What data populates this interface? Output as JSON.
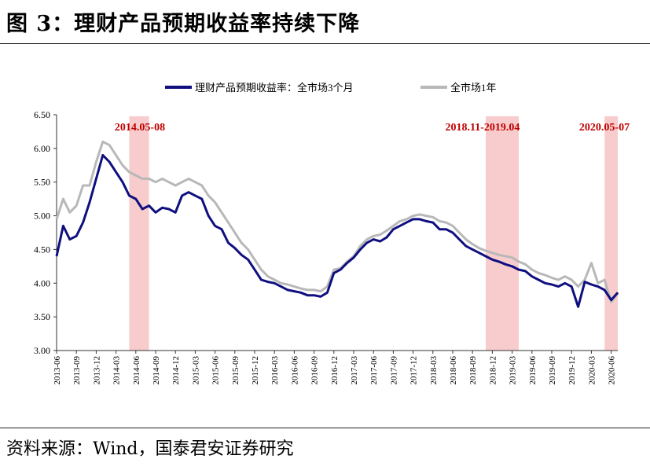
{
  "figure_title": "图 3：理财产品预期收益率持续下降",
  "source": "资料来源：Wind，国泰君安证券研究",
  "chart_data": {
    "type": "line",
    "ylim": [
      3.0,
      6.5
    ],
    "yticks": [
      "3.00",
      "3.50",
      "4.00",
      "4.50",
      "5.00",
      "5.50",
      "6.00",
      "6.50"
    ],
    "x_tick_labels": [
      "2013-06",
      "2013-09",
      "2013-12",
      "2014-03",
      "2014-06",
      "2014-09",
      "2014-12",
      "2015-03",
      "2015-06",
      "2015-09",
      "2015-12",
      "2016-03",
      "2016-06",
      "2016-09",
      "2016-12",
      "2017-03",
      "2017-06",
      "2017-09",
      "2017-12",
      "2018-03",
      "2018-06",
      "2018-09",
      "2018-12",
      "2019-03",
      "2019-06",
      "2019-09",
      "2019-12",
      "2020-03",
      "2020-06"
    ],
    "legend_position": "top",
    "shaded_periods": [
      {
        "label": "2014.05-08",
        "start": "2014-05",
        "end": "2014-08"
      },
      {
        "label": "2018.11-2019.04",
        "start": "2018-11",
        "end": "2019-04"
      },
      {
        "label": "2020.05-07",
        "start": "2020-05",
        "end": "2020-07"
      }
    ],
    "shade_color": "#f8cccc",
    "annotation_color": "#c00000",
    "series": [
      {
        "name": "理财产品预期收益率：全市场3个月",
        "color": "#0f0f80",
        "points": [
          [
            "2013-06",
            4.4
          ],
          [
            "2013-07",
            4.85
          ],
          [
            "2013-08",
            4.65
          ],
          [
            "2013-09",
            4.7
          ],
          [
            "2013-10",
            4.9
          ],
          [
            "2013-11",
            5.2
          ],
          [
            "2013-12",
            5.55
          ],
          [
            "2014-01",
            5.9
          ],
          [
            "2014-02",
            5.8
          ],
          [
            "2014-03",
            5.65
          ],
          [
            "2014-04",
            5.5
          ],
          [
            "2014-05",
            5.3
          ],
          [
            "2014-06",
            5.25
          ],
          [
            "2014-07",
            5.1
          ],
          [
            "2014-08",
            5.15
          ],
          [
            "2014-09",
            5.05
          ],
          [
            "2014-10",
            5.12
          ],
          [
            "2014-11",
            5.1
          ],
          [
            "2014-12",
            5.05
          ],
          [
            "2015-01",
            5.3
          ],
          [
            "2015-02",
            5.35
          ],
          [
            "2015-03",
            5.3
          ],
          [
            "2015-04",
            5.25
          ],
          [
            "2015-05",
            5.0
          ],
          [
            "2015-06",
            4.85
          ],
          [
            "2015-07",
            4.8
          ],
          [
            "2015-08",
            4.6
          ],
          [
            "2015-09",
            4.52
          ],
          [
            "2015-10",
            4.42
          ],
          [
            "2015-11",
            4.35
          ],
          [
            "2015-12",
            4.2
          ],
          [
            "2016-01",
            4.05
          ],
          [
            "2016-02",
            4.02
          ],
          [
            "2016-03",
            4.0
          ],
          [
            "2016-04",
            3.95
          ],
          [
            "2016-05",
            3.9
          ],
          [
            "2016-06",
            3.88
          ],
          [
            "2016-07",
            3.86
          ],
          [
            "2016-08",
            3.82
          ],
          [
            "2016-09",
            3.82
          ],
          [
            "2016-10",
            3.8
          ],
          [
            "2016-11",
            3.86
          ],
          [
            "2016-12",
            4.15
          ],
          [
            "2017-01",
            4.2
          ],
          [
            "2017-02",
            4.3
          ],
          [
            "2017-03",
            4.38
          ],
          [
            "2017-04",
            4.5
          ],
          [
            "2017-05",
            4.6
          ],
          [
            "2017-06",
            4.65
          ],
          [
            "2017-07",
            4.62
          ],
          [
            "2017-08",
            4.68
          ],
          [
            "2017-09",
            4.8
          ],
          [
            "2017-10",
            4.85
          ],
          [
            "2017-11",
            4.9
          ],
          [
            "2017-12",
            4.95
          ],
          [
            "2018-01",
            4.95
          ],
          [
            "2018-02",
            4.92
          ],
          [
            "2018-03",
            4.9
          ],
          [
            "2018-04",
            4.8
          ],
          [
            "2018-05",
            4.8
          ],
          [
            "2018-06",
            4.75
          ],
          [
            "2018-07",
            4.65
          ],
          [
            "2018-08",
            4.55
          ],
          [
            "2018-09",
            4.5
          ],
          [
            "2018-10",
            4.45
          ],
          [
            "2018-11",
            4.4
          ],
          [
            "2018-12",
            4.35
          ],
          [
            "2019-01",
            4.32
          ],
          [
            "2019-02",
            4.28
          ],
          [
            "2019-03",
            4.25
          ],
          [
            "2019-04",
            4.2
          ],
          [
            "2019-05",
            4.18
          ],
          [
            "2019-06",
            4.1
          ],
          [
            "2019-07",
            4.05
          ],
          [
            "2019-08",
            4.0
          ],
          [
            "2019-09",
            3.98
          ],
          [
            "2019-10",
            3.95
          ],
          [
            "2019-11",
            4.0
          ],
          [
            "2019-12",
            3.95
          ],
          [
            "2020-01",
            3.65
          ],
          [
            "2020-02",
            4.02
          ],
          [
            "2020-03",
            3.98
          ],
          [
            "2020-04",
            3.95
          ],
          [
            "2020-05",
            3.9
          ],
          [
            "2020-06",
            3.75
          ],
          [
            "2020-07",
            3.86
          ]
        ]
      },
      {
        "name": "全市场1年",
        "color": "#b8b8b8",
        "points": [
          [
            "2013-06",
            4.95
          ],
          [
            "2013-07",
            5.25
          ],
          [
            "2013-08",
            5.05
          ],
          [
            "2013-09",
            5.15
          ],
          [
            "2013-10",
            5.45
          ],
          [
            "2013-11",
            5.45
          ],
          [
            "2013-12",
            5.8
          ],
          [
            "2014-01",
            6.1
          ],
          [
            "2014-02",
            6.05
          ],
          [
            "2014-03",
            5.9
          ],
          [
            "2014-04",
            5.75
          ],
          [
            "2014-05",
            5.65
          ],
          [
            "2014-06",
            5.6
          ],
          [
            "2014-07",
            5.55
          ],
          [
            "2014-08",
            5.55
          ],
          [
            "2014-09",
            5.5
          ],
          [
            "2014-10",
            5.55
          ],
          [
            "2014-11",
            5.5
          ],
          [
            "2014-12",
            5.45
          ],
          [
            "2015-01",
            5.5
          ],
          [
            "2015-02",
            5.55
          ],
          [
            "2015-03",
            5.5
          ],
          [
            "2015-04",
            5.45
          ],
          [
            "2015-05",
            5.3
          ],
          [
            "2015-06",
            5.2
          ],
          [
            "2015-07",
            5.05
          ],
          [
            "2015-08",
            4.9
          ],
          [
            "2015-09",
            4.75
          ],
          [
            "2015-10",
            4.6
          ],
          [
            "2015-11",
            4.5
          ],
          [
            "2015-12",
            4.35
          ],
          [
            "2016-01",
            4.2
          ],
          [
            "2016-02",
            4.1
          ],
          [
            "2016-03",
            4.05
          ],
          [
            "2016-04",
            4.0
          ],
          [
            "2016-05",
            3.98
          ],
          [
            "2016-06",
            3.95
          ],
          [
            "2016-07",
            3.92
          ],
          [
            "2016-08",
            3.9
          ],
          [
            "2016-09",
            3.9
          ],
          [
            "2016-10",
            3.88
          ],
          [
            "2016-11",
            3.95
          ],
          [
            "2016-12",
            4.2
          ],
          [
            "2017-01",
            4.22
          ],
          [
            "2017-02",
            4.32
          ],
          [
            "2017-03",
            4.4
          ],
          [
            "2017-04",
            4.55
          ],
          [
            "2017-05",
            4.65
          ],
          [
            "2017-06",
            4.7
          ],
          [
            "2017-07",
            4.72
          ],
          [
            "2017-08",
            4.78
          ],
          [
            "2017-09",
            4.85
          ],
          [
            "2017-10",
            4.92
          ],
          [
            "2017-11",
            4.95
          ],
          [
            "2017-12",
            5.0
          ],
          [
            "2018-01",
            5.02
          ],
          [
            "2018-02",
            5.0
          ],
          [
            "2018-03",
            4.98
          ],
          [
            "2018-04",
            4.92
          ],
          [
            "2018-05",
            4.9
          ],
          [
            "2018-06",
            4.85
          ],
          [
            "2018-07",
            4.75
          ],
          [
            "2018-08",
            4.65
          ],
          [
            "2018-09",
            4.58
          ],
          [
            "2018-10",
            4.52
          ],
          [
            "2018-11",
            4.48
          ],
          [
            "2018-12",
            4.45
          ],
          [
            "2019-01",
            4.42
          ],
          [
            "2019-02",
            4.4
          ],
          [
            "2019-03",
            4.38
          ],
          [
            "2019-04",
            4.32
          ],
          [
            "2019-05",
            4.28
          ],
          [
            "2019-06",
            4.2
          ],
          [
            "2019-07",
            4.15
          ],
          [
            "2019-08",
            4.12
          ],
          [
            "2019-09",
            4.08
          ],
          [
            "2019-10",
            4.05
          ],
          [
            "2019-11",
            4.1
          ],
          [
            "2019-12",
            4.05
          ],
          [
            "2020-01",
            3.95
          ],
          [
            "2020-02",
            4.05
          ],
          [
            "2020-03",
            4.3
          ],
          [
            "2020-04",
            4.0
          ],
          [
            "2020-05",
            4.05
          ],
          [
            "2020-06",
            3.72
          ],
          [
            "2020-07",
            3.85
          ]
        ]
      }
    ]
  }
}
